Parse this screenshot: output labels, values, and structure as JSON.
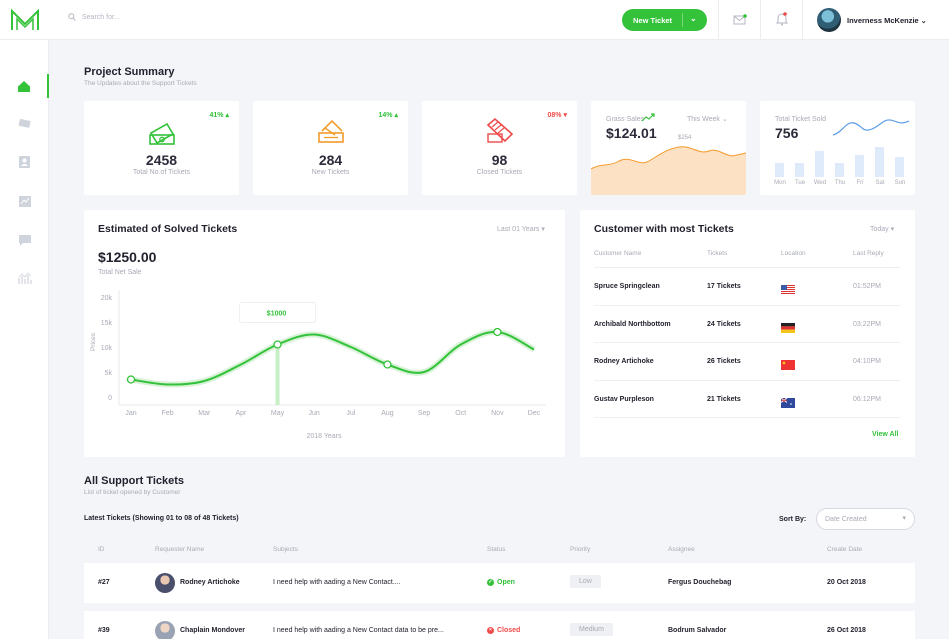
{
  "topbar": {
    "search_placeholder": "Search for...",
    "new_ticket_label": "New Ticket",
    "user_name": "Inverness McKenzie"
  },
  "colors": {
    "accent": "#33c23a",
    "orange": "#f39b2b",
    "red": "#ef4a4a",
    "blue": "#5b9ee6"
  },
  "summary": {
    "title": "Project Summary",
    "subtitle": "The Updates about the Support Tickets",
    "cards": [
      {
        "value": "2458",
        "label": "Total No.of Tickets",
        "change": "41%",
        "trend": "up",
        "icon": "ticket-icon"
      },
      {
        "value": "284",
        "label": "New Tickets",
        "change": "14%",
        "trend": "up",
        "icon": "ticket-icon"
      },
      {
        "value": "98",
        "label": "Closed Tickets",
        "change": "08%",
        "trend": "down",
        "icon": "ticket-icon"
      }
    ],
    "gross_sales": {
      "label": "Grass Sales",
      "value": "$124.01",
      "period": "This Week",
      "peak_label": "$254"
    },
    "tickets_sold": {
      "label": "Total Ticket Sold",
      "value": "756",
      "days": [
        "Mon",
        "Tue",
        "Wed",
        "Thu",
        "Fri",
        "Sat",
        "Sun"
      ]
    }
  },
  "solved": {
    "title": "Estimated of Solved Tickets",
    "period": "Last 01 Years",
    "total": "$1250.00",
    "total_label": "Total Net Sale",
    "tooltip": "$1000"
  },
  "chart_data": {
    "type": "line",
    "categories": [
      "Jan",
      "Feb",
      "Mar",
      "Apr",
      "May",
      "Jun",
      "Jul",
      "Aug",
      "Sep",
      "Oct",
      "Nov",
      "Dec"
    ],
    "y_ticks": [
      "20k",
      "15k",
      "10k",
      "5k",
      "0"
    ],
    "ylim": [
      0,
      20000
    ],
    "series": [
      {
        "values": [
          3500,
          2500,
          3200,
          6500,
          10500,
          12500,
          10000,
          6500,
          5000,
          10500,
          13000,
          9500
        ]
      }
    ],
    "markers": [
      0,
      4,
      7,
      10
    ],
    "highlight_index": 4,
    "ylabel": "Prices",
    "xlabel": "2018 Years",
    "grid": false
  },
  "customers": {
    "title": "Customer with most Tickets",
    "period": "Today",
    "headers": [
      "Customer Name",
      "Tickets",
      "Location",
      "Last Reply"
    ],
    "rows": [
      {
        "name": "Spruce Springclean",
        "tickets": "17 Tickets",
        "flag": "us-flag-icon",
        "time": "01:52PM"
      },
      {
        "name": "Archibald Northbottom",
        "tickets": "24 Tickets",
        "flag": "germany-flag-icon",
        "time": "03:22PM"
      },
      {
        "name": "Rodney Artichoke",
        "tickets": "26 Tickets",
        "flag": "china-flag-icon",
        "time": "04:10PM"
      },
      {
        "name": "Gustav Purpleson",
        "tickets": "21 Tickets",
        "flag": "australia-flag-icon",
        "time": "06:12PM"
      }
    ],
    "view_all": "View All"
  },
  "support": {
    "title": "All Support Tickets",
    "subtitle": "List of ticket opened by Customer",
    "latest": "Latest Tickets (Showing 01 to 08 of 48 Tickets)",
    "sort_label": "Sort By:",
    "sort_value": "Date Created",
    "headers": [
      "ID",
      "Requester Name",
      "Subjects",
      "Status",
      "Priority",
      "Assignee",
      "Create Date"
    ],
    "rows": [
      {
        "id": "#27",
        "name": "Rodney Artichoke",
        "subject": "I need help with aading a New Contact....",
        "status": "Open",
        "priority": "Low",
        "assignee": "Fergus Douchebag",
        "date": "20 Oct 2018"
      },
      {
        "id": "#39",
        "name": "Chaplain Mondover",
        "subject": "I need help with aading a New Contact data to be pre...",
        "status": "Closed",
        "priority": "Medium",
        "assignee": "Bodrum Salvador",
        "date": "26 Oct 2018"
      }
    ]
  }
}
